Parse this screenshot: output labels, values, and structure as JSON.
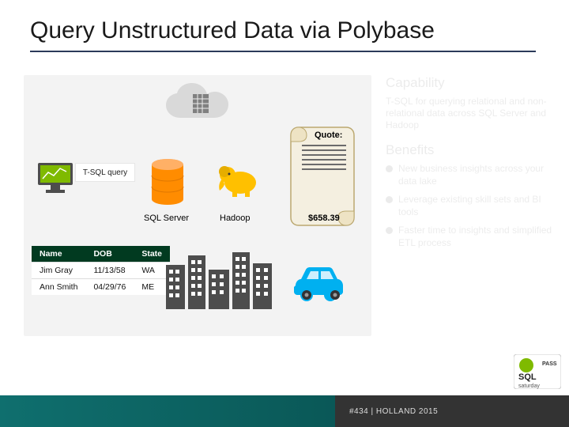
{
  "title": "Query Unstructured Data via Polybase",
  "colors": {
    "title_text": "#1a1a1a",
    "rule": "#2b3a5a",
    "diagram_bg": "#f3f3f3",
    "cloud": "#d9d9d9",
    "monitor_green": "#7fba00",
    "db_orange": "#ff8c00",
    "elephant_yellow": "#ffc000",
    "scroll_fill": "#f4efe0",
    "scroll_stroke": "#bba870",
    "table_header_bg": "#013a20",
    "table_header_fg": "#ffffff",
    "city_fill": "#4d4d4d",
    "car_blue": "#00b0f0",
    "footer_teal_start": "#0f6f6e",
    "footer_teal_end": "#0a5857",
    "footer_dark": "#333333",
    "ghost_text": "rgba(0,0,0,0.08)"
  },
  "labels": {
    "tsql": "T-SQL query",
    "sql_server": "SQL Server",
    "hadoop": "Hadoop",
    "quote": "Quote:",
    "quote_amount": "$658.39"
  },
  "table": {
    "columns": [
      "Name",
      "DOB",
      "State"
    ],
    "rows": [
      [
        "Jim Gray",
        "11/13/58",
        "WA"
      ],
      [
        "Ann Smith",
        "04/29/76",
        "ME"
      ]
    ]
  },
  "right": {
    "heading1": "Capability",
    "body1": "T-SQL for querying relational and non-relational data across SQL Server and Hadoop",
    "heading2": "Benefits",
    "bullets": [
      "New business insights across your data lake",
      "Leverage existing skill sets and BI tools",
      "Faster time to insights and simplified ETL process"
    ]
  },
  "footer": {
    "text": "#434 | HOLLAND 2015"
  }
}
